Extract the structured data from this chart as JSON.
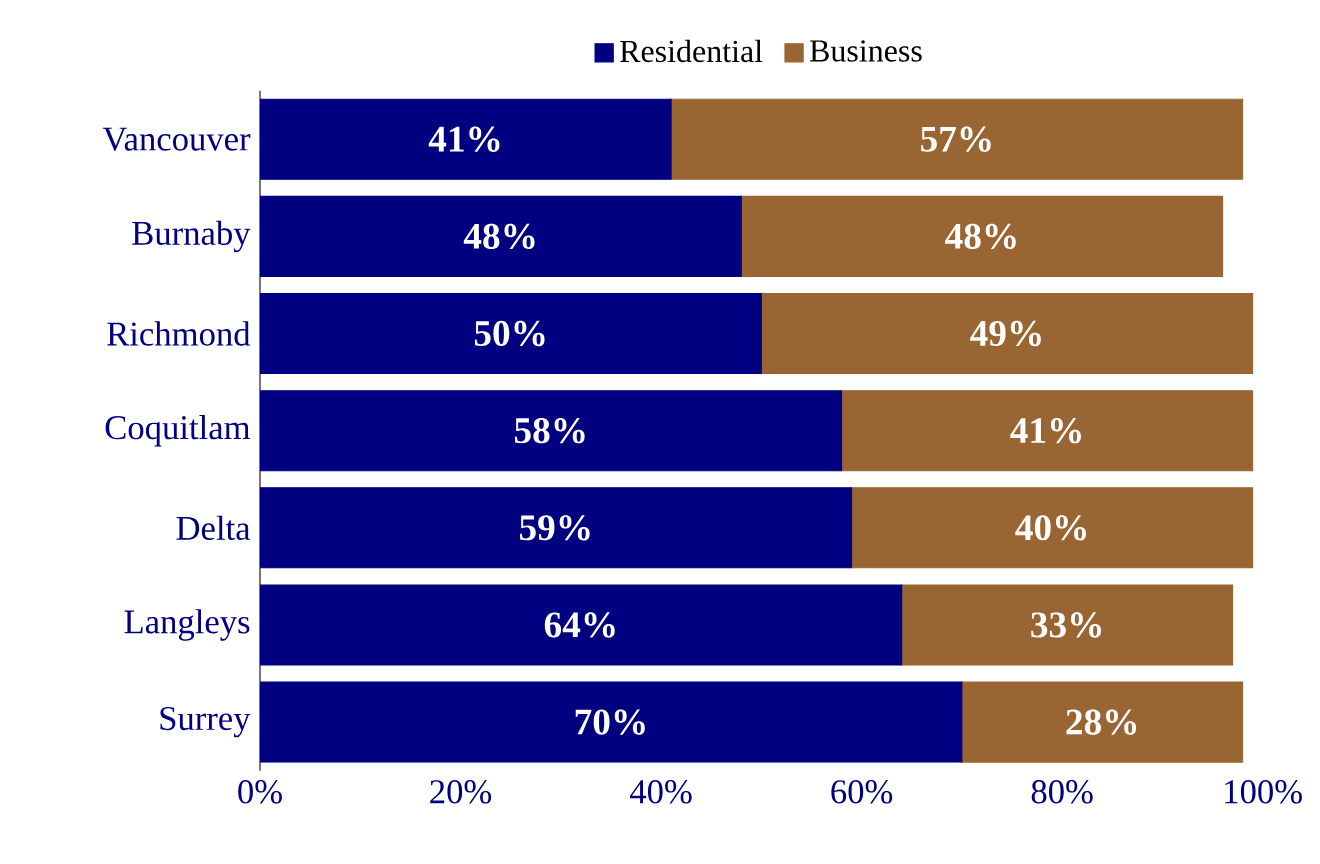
{
  "chart_data": {
    "type": "bar",
    "orientation": "horizontal",
    "stacked": true,
    "categories": [
      "Vancouver",
      "Burnaby",
      "Richmond",
      "Coquitlam",
      "Delta",
      "Langleys",
      "Surrey"
    ],
    "series": [
      {
        "name": "Residential",
        "color": "#000080",
        "values": [
          41,
          48,
          50,
          58,
          59,
          64,
          70
        ],
        "value_labels": [
          "41%",
          "48%",
          "50%",
          "58%",
          "59%",
          "64%",
          "70%"
        ]
      },
      {
        "name": "Business",
        "color": "#996633",
        "values": [
          57,
          48,
          49,
          41,
          40,
          33,
          28
        ],
        "value_labels": [
          "57%",
          "48%",
          "49%",
          "41%",
          "40%",
          "33%",
          "28%"
        ]
      }
    ],
    "xlim": [
      0,
      100
    ],
    "xticks": [
      {
        "value": 0,
        "label": "0%"
      },
      {
        "value": 20,
        "label": "20%"
      },
      {
        "value": 40,
        "label": "40%"
      },
      {
        "value": 60,
        "label": "60%"
      },
      {
        "value": 80,
        "label": "80%"
      },
      {
        "value": 100,
        "label": "100%"
      }
    ],
    "legend": "top",
    "grid": false
  }
}
